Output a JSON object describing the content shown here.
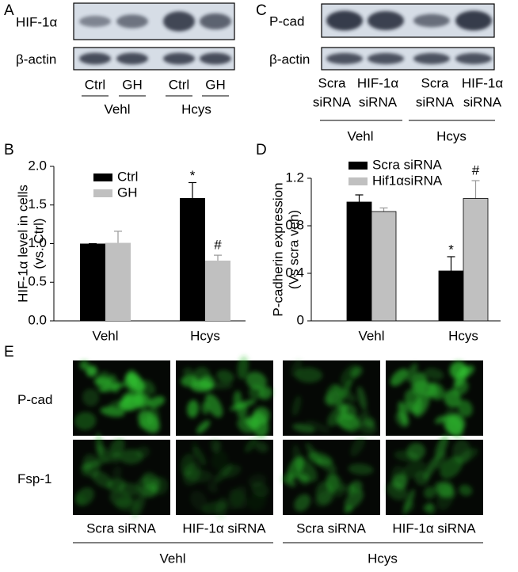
{
  "panel_labels": [
    "A",
    "B",
    "C",
    "D",
    "E"
  ],
  "blot_a": {
    "rows": [
      "HIF-1α",
      "β-actin"
    ],
    "lanes": [
      "Ctrl",
      "GH",
      "Ctrl",
      "GH"
    ],
    "groups": [
      "Vehl",
      "Hcys"
    ]
  },
  "blot_c": {
    "rows": [
      "P-cad",
      "β-actin"
    ],
    "lanes": [
      [
        "Scra",
        "siRNA"
      ],
      [
        "HIF-1α",
        "siRNA"
      ],
      [
        "Scra",
        "siRNA"
      ],
      [
        "HIF-1α",
        "siRNA"
      ]
    ],
    "groups": [
      "Vehl",
      "Hcys"
    ]
  },
  "chart_data": [
    {
      "type": "bar",
      "y_label": [
        "HIF-1α level in cells",
        "(vs. Ctrl)"
      ],
      "categories": [
        "Vehl",
        "Hcys"
      ],
      "series": [
        {
          "name": "Ctrl",
          "color": "#000000",
          "values": [
            1.0,
            1.59
          ],
          "errors": [
            0,
            0.2
          ],
          "marks": [
            null,
            "*"
          ]
        },
        {
          "name": "GH",
          "color": "#c0c0c0",
          "values": [
            1.01,
            0.78
          ],
          "errors": [
            0.15,
            0.07
          ],
          "marks": [
            null,
            "#"
          ]
        }
      ],
      "ylim": [
        0,
        2
      ],
      "yticks": [
        {
          "value": 0,
          "label": "0.0"
        },
        0.5,
        {
          "value": 1,
          "label": "1.0"
        },
        1.5,
        {
          "value": 2,
          "label": "2.0"
        }
      ]
    },
    {
      "type": "bar",
      "y_label": [
        "P-cadherin expression",
        "(Vs scra veh)"
      ],
      "categories": [
        "Vehl",
        "Hcys"
      ],
      "series": [
        {
          "name": "Scra siRNA",
          "color": "#000000",
          "values": [
            1.0,
            0.42
          ],
          "errors": [
            0.06,
            0.12
          ],
          "marks": [
            null,
            "*"
          ]
        },
        {
          "name": "Hif1αsiRNA",
          "color": "#c0c0c0",
          "values": [
            0.92,
            1.03
          ],
          "errors": [
            0.03,
            0.15
          ],
          "marks": [
            null,
            "#"
          ]
        }
      ],
      "ylim": [
        0,
        1.2
      ],
      "yticks": [
        0,
        0.4,
        0.8,
        1.2
      ]
    }
  ],
  "images_e": {
    "rows": [
      "P-cad",
      "Fsp-1"
    ],
    "columns": [
      "Scra siRNA",
      "HIF-1α siRNA",
      "Scra siRNA",
      "HIF-1α siRNA"
    ],
    "groups": [
      "Vehl",
      "Hcys"
    ]
  }
}
